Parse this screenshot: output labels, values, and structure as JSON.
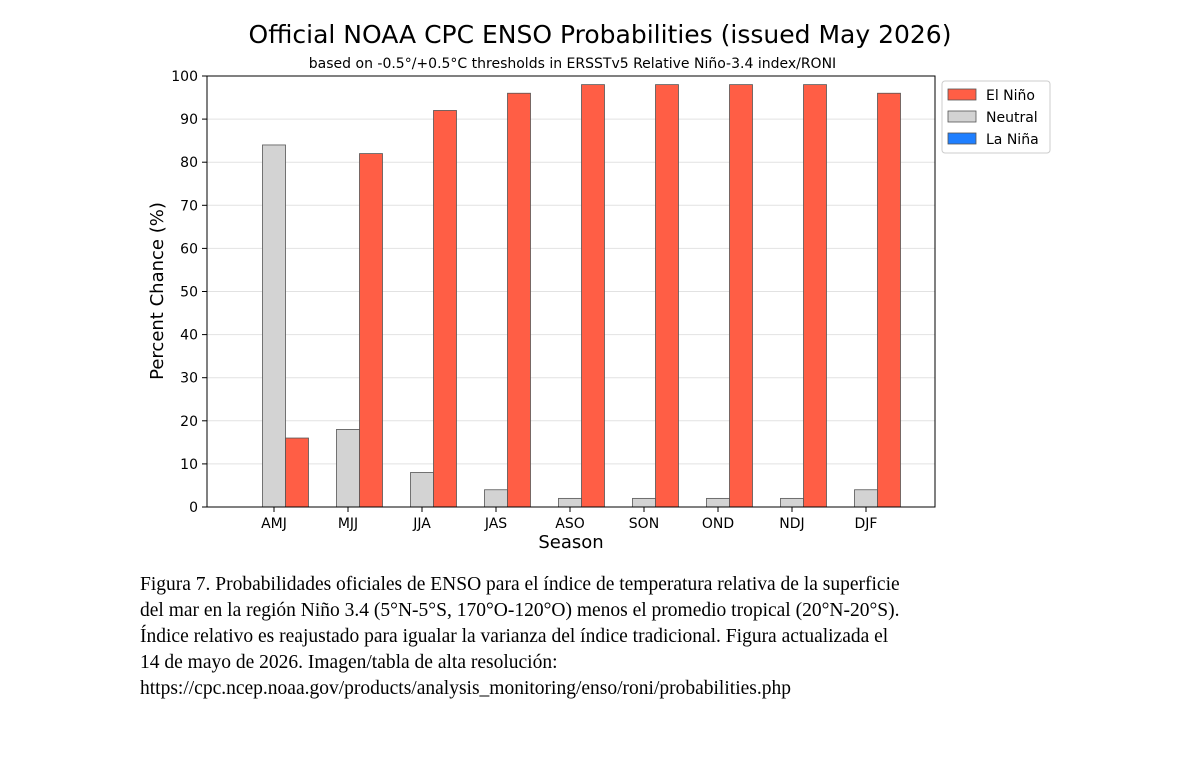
{
  "chart_data": {
    "type": "bar",
    "title": "Official NOAA CPC ENSO Probabilities (issued May 2026)",
    "subtitle": "based on -0.5°/+0.5°C thresholds in ERSSTv5 Relative Niño-3.4 index/RONI",
    "xlabel": "Season",
    "ylabel": "Percent Chance (%)",
    "ylim": [
      0,
      100
    ],
    "yticks": [
      "0",
      "10",
      "20",
      "30",
      "40",
      "50",
      "60",
      "70",
      "80",
      "90",
      "100"
    ],
    "categories": [
      "AMJ",
      "MJJ",
      "JJA",
      "JAS",
      "ASO",
      "SON",
      "OND",
      "NDJ",
      "DJF"
    ],
    "series": [
      {
        "name": "La Niña",
        "color": "#1f7fff",
        "values": [
          0,
          0,
          0,
          0,
          0,
          0,
          0,
          0,
          0
        ]
      },
      {
        "name": "Neutral",
        "color": "#d3d3d3",
        "values": [
          84,
          18,
          8,
          4,
          2,
          2,
          2,
          2,
          4
        ]
      },
      {
        "name": "El Niño",
        "color": "#ff5e45",
        "values": [
          16,
          82,
          92,
          96,
          98,
          98,
          98,
          98,
          96
        ]
      }
    ],
    "legend": {
      "placement": "outside-right-top",
      "order": [
        "El Niño",
        "Neutral",
        "La Niña"
      ]
    },
    "grid": "y"
  },
  "caption": {
    "lines": [
      "Figura 7. Probabilidades oficiales de ENSO para el índice de temperatura relativa de la superficie",
      "del mar en la región Niño 3.4 (5°N-5°S, 170°O-120°O) menos el promedio tropical (20°N-20°S).",
      "Índice relativo es reajustado para igualar la varianza del índice tradicional. Figura actualizada el",
      "14 de mayo de 2026. Imagen/tabla de alta resolución:",
      "https://cpc.ncep.noaa.gov/products/analysis_monitoring/enso/roni/probabilities.php"
    ]
  }
}
